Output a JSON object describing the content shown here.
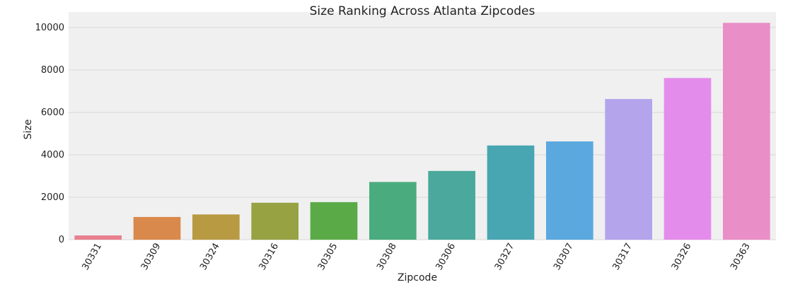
{
  "chart_data": {
    "type": "bar",
    "title": "Size Ranking Across Atlanta Zipcodes",
    "xlabel": "Zipcode",
    "ylabel": "Size",
    "categories": [
      "30331",
      "30309",
      "30324",
      "30316",
      "30305",
      "30308",
      "30306",
      "30327",
      "30307",
      "30317",
      "30326",
      "30363"
    ],
    "values": [
      200,
      1070,
      1190,
      1740,
      1770,
      2720,
      3240,
      4440,
      4630,
      6630,
      7620,
      10220
    ],
    "colors": [
      "#e8808f",
      "#d9894b",
      "#b89a42",
      "#97a243",
      "#5aab47",
      "#4aac7e",
      "#4aa99c",
      "#48a6b2",
      "#5aa8de",
      "#b3a4ec",
      "#e48ceb",
      "#ea8ec7"
    ],
    "yticks": [
      0,
      2000,
      4000,
      6000,
      8000,
      10000
    ],
    "ytick_labels": [
      "0",
      "2000",
      "4000",
      "6000",
      "8000",
      "10000"
    ],
    "ylim": [
      0,
      10730
    ],
    "grid": true,
    "background": "#f0f0f0",
    "grid_color": "#d9d9d9"
  }
}
